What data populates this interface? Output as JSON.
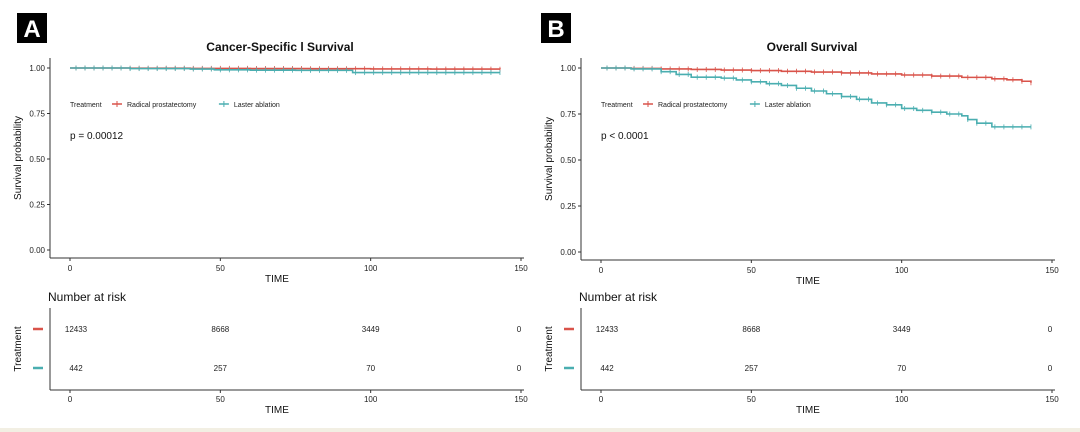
{
  "chart_data": [
    {
      "type": "line",
      "panel_label": "A",
      "title": "Cancer-Specific l Survival",
      "xlabel": "TIME",
      "ylabel": "Survival probability",
      "xlim": [
        0,
        150
      ],
      "ylim": [
        0,
        1
      ],
      "xticks": [
        "0",
        "50",
        "100",
        "150"
      ],
      "yticks": [
        "0.00",
        "0.25",
        "0.50",
        "0.75",
        "1.00"
      ],
      "legend_title": "Treatment",
      "legend_position": "top-left",
      "pvalue": "p = 0.00012",
      "series": [
        {
          "name": "Radical prostatectomy",
          "color": "#d9534a",
          "x": [
            0,
            20,
            40,
            60,
            80,
            100,
            120,
            143
          ],
          "y": [
            1.0,
            0.999,
            0.998,
            0.997,
            0.996,
            0.995,
            0.994,
            0.993
          ]
        },
        {
          "name": "Laster ablation",
          "color": "#4aaeb0",
          "x": [
            0,
            20,
            40,
            48,
            60,
            75,
            93,
            94,
            105,
            120,
            143
          ],
          "y": [
            1.0,
            0.997,
            0.994,
            0.99,
            0.988,
            0.987,
            0.987,
            0.975,
            0.975,
            0.975,
            0.975
          ]
        }
      ],
      "risk_table": {
        "title": "Number at risk",
        "ylabel": "Treatment",
        "xlabel": "TIME",
        "xticks": [
          "0",
          "50",
          "100",
          "150"
        ],
        "rows": [
          {
            "color": "#d9534a",
            "values": [
              "12433",
              "8668",
              "3449",
              "0"
            ]
          },
          {
            "color": "#4aaeb0",
            "values": [
              "442",
              "257",
              "70",
              "0"
            ]
          }
        ]
      }
    },
    {
      "type": "line",
      "panel_label": "B",
      "title": "Overall Survival",
      "xlabel": "TIME",
      "ylabel": "Survival probability",
      "xlim": [
        0,
        150
      ],
      "ylim": [
        0,
        1
      ],
      "xticks": [
        "0",
        "50",
        "100",
        "150"
      ],
      "yticks": [
        "0.00",
        "0.25",
        "0.50",
        "0.75",
        "1.00"
      ],
      "legend_title": "Treatment",
      "legend_position": "top-left",
      "pvalue": "p < 0.0001",
      "series": [
        {
          "name": "Radical prostatectomy",
          "color": "#d9534a",
          "x": [
            0,
            10,
            20,
            30,
            40,
            50,
            60,
            70,
            80,
            90,
            100,
            110,
            120,
            130,
            135,
            140,
            143
          ],
          "y": [
            1.0,
            0.998,
            0.995,
            0.992,
            0.989,
            0.986,
            0.982,
            0.978,
            0.973,
            0.968,
            0.962,
            0.956,
            0.949,
            0.941,
            0.936,
            0.928,
            0.92
          ]
        },
        {
          "name": "Laster ablation",
          "color": "#4aaeb0",
          "x": [
            0,
            10,
            20,
            25,
            30,
            40,
            45,
            50,
            55,
            60,
            65,
            70,
            75,
            80,
            85,
            90,
            95,
            100,
            105,
            110,
            115,
            120,
            122,
            125,
            130,
            143
          ],
          "y": [
            1.0,
            0.995,
            0.98,
            0.965,
            0.95,
            0.945,
            0.935,
            0.925,
            0.915,
            0.905,
            0.89,
            0.875,
            0.86,
            0.845,
            0.83,
            0.81,
            0.8,
            0.78,
            0.77,
            0.76,
            0.75,
            0.74,
            0.72,
            0.7,
            0.68,
            0.68
          ]
        }
      ],
      "risk_table": {
        "title": "Number at risk",
        "ylabel": "Treatment",
        "xlabel": "TIME",
        "xticks": [
          "0",
          "50",
          "100",
          "150"
        ],
        "rows": [
          {
            "color": "#d9534a",
            "values": [
              "12433",
              "8668",
              "3449",
              "0"
            ]
          },
          {
            "color": "#4aaeb0",
            "values": [
              "442",
              "257",
              "70",
              "0"
            ]
          }
        ]
      }
    }
  ]
}
